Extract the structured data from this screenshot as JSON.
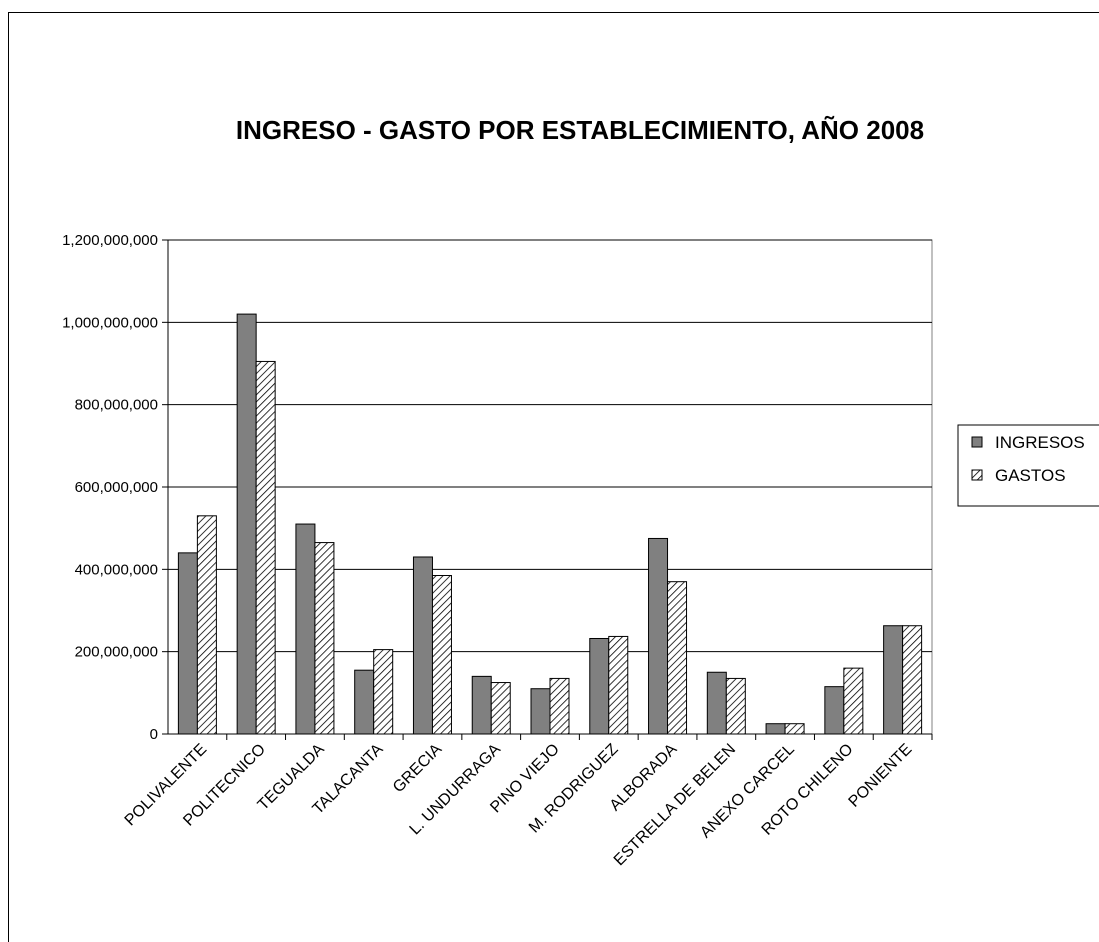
{
  "chart_data": {
    "type": "bar",
    "title": "INGRESO - GASTO POR ESTABLECIMIENTO, AÑO 2008",
    "xlabel": "",
    "ylabel": "",
    "ylim": [
      0,
      1200000000
    ],
    "yticks": [
      0,
      200000000,
      400000000,
      600000000,
      800000000,
      1000000000,
      1200000000
    ],
    "ytick_labels": [
      "0",
      "200,000,000",
      "400,000,000",
      "600,000,000",
      "800,000,000",
      "1,000,000,000",
      "1,200,000,000"
    ],
    "grid": true,
    "legend_position": "right",
    "categories": [
      "POLIVALENTE",
      "POLITECNICO",
      "TEGUALDA",
      "TALACANTA",
      "GRECIA",
      "L. UNDURRAGA",
      "PINO VIEJO",
      "M. RODRIGUEZ",
      "ALBORADA",
      "ESTRELLA DE BELEN",
      "ANEXO CARCEL",
      "ROTO CHILENO",
      "PONIENTE"
    ],
    "series": [
      {
        "name": "INGRESOS",
        "color": "#808080",
        "pattern": "solid",
        "values": [
          440000000,
          1020000000,
          510000000,
          155000000,
          430000000,
          140000000,
          110000000,
          232000000,
          475000000,
          150000000,
          25000000,
          115000000,
          263000000
        ]
      },
      {
        "name": "GASTOS",
        "color": "#808080",
        "pattern": "hatched",
        "values": [
          530000000,
          905000000,
          465000000,
          205000000,
          385000000,
          125000000,
          135000000,
          237000000,
          370000000,
          135000000,
          25000000,
          160000000,
          263000000
        ]
      }
    ]
  }
}
